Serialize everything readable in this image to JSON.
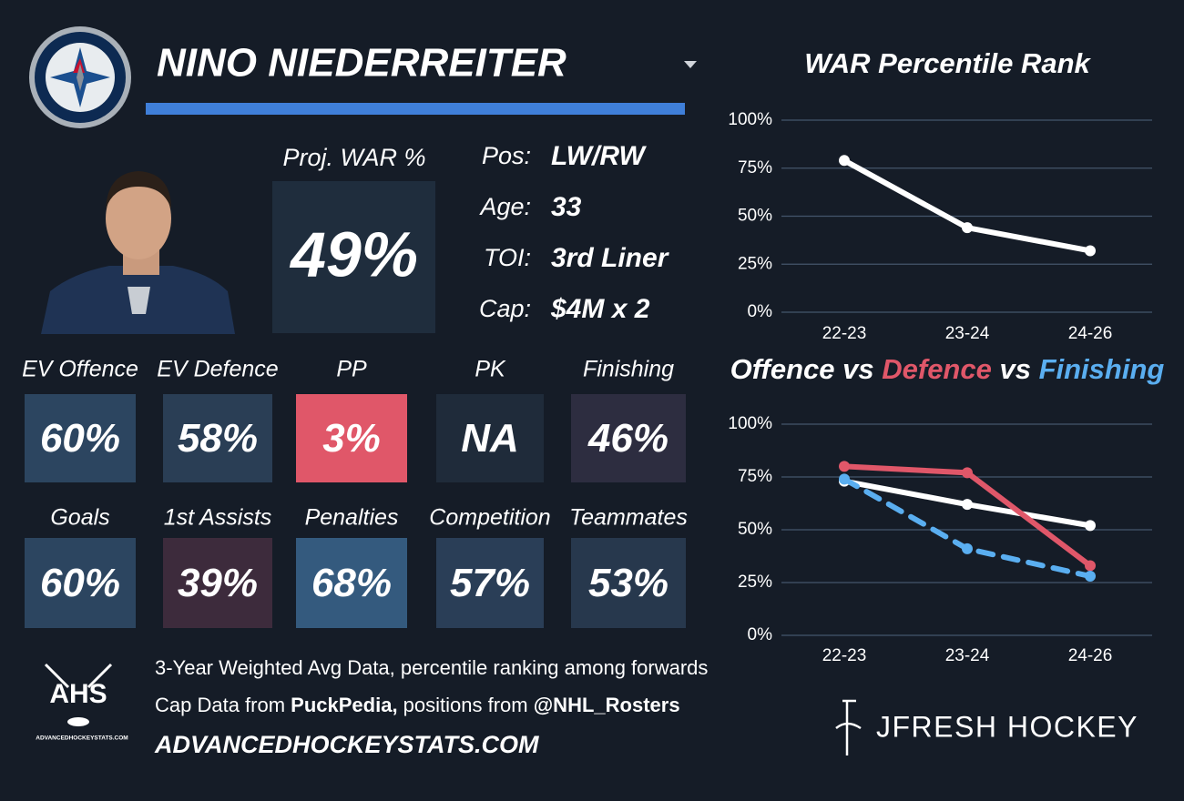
{
  "player": {
    "name": "NINO NIEDERREITER",
    "proj_label": "Proj. WAR %",
    "proj_value": "49%",
    "info": [
      {
        "label": "Pos:",
        "value": "LW/RW"
      },
      {
        "label": "Age:",
        "value": "33"
      },
      {
        "label": "TOI:",
        "value": "3rd Liner"
      },
      {
        "label": "Cap:",
        "value": "$4M x 2"
      }
    ]
  },
  "tiles": [
    {
      "label": "EV Offence",
      "value": "60%",
      "color": "#2c4560"
    },
    {
      "label": "EV Defence",
      "value": "58%",
      "color": "#2a3e55"
    },
    {
      "label": "PP",
      "value": "3%",
      "color": "#e05769"
    },
    {
      "label": "PK",
      "value": "NA",
      "color": "#1f2b3a"
    },
    {
      "label": "Finishing",
      "value": "46%",
      "color": "#2d2d40"
    },
    {
      "label": "Goals",
      "value": "60%",
      "color": "#2c4560"
    },
    {
      "label": "1st Assists",
      "value": "39%",
      "color": "#3d2b3c"
    },
    {
      "label": "Penalties",
      "value": "68%",
      "color": "#345a7e"
    },
    {
      "label": "Competition",
      "value": "57%",
      "color": "#2a3e57"
    },
    {
      "label": "Teammates",
      "value": "53%",
      "color": "#27384d"
    }
  ],
  "footer": {
    "line1": "3-Year Weighted Avg Data, percentile ranking among forwards",
    "line2": [
      "Cap Data from ",
      "PuckPedia,",
      " positions from ",
      "@NHL_Rosters"
    ],
    "website": "ADVANCEDHOCKEYSTATS.COM",
    "ahs": "AHS",
    "ahs_small": "ADVANCEDHOCKEYSTATS.COM",
    "brand": "JFRESH HOCKEY"
  },
  "chart_data": [
    {
      "type": "line",
      "title": "WAR Percentile Rank",
      "categories": [
        "22-23",
        "23-24",
        "24-26"
      ],
      "values": [
        79,
        44,
        32
      ],
      "color": "#ffffff",
      "ylim": [
        0,
        100
      ],
      "yticks": [
        {
          "value": 0,
          "label": "0%"
        },
        {
          "value": 25,
          "label": "25%"
        },
        {
          "value": 50,
          "label": "50%"
        },
        {
          "value": 75,
          "label": "75%"
        },
        {
          "value": 100,
          "label": "100%"
        }
      ],
      "grid": true
    },
    {
      "type": "line",
      "title_separator": "vs",
      "categories": [
        "22-23",
        "23-24",
        "24-26"
      ],
      "series": [
        {
          "name": "Offence",
          "color": "#ffffff",
          "values": [
            73,
            62,
            52
          ]
        },
        {
          "name": "Defence",
          "color": "#e05769",
          "values": [
            80,
            77,
            33
          ]
        },
        {
          "name": "Finishing",
          "color": "#5aaef0",
          "values": [
            74,
            41,
            28
          ],
          "dashed": true
        }
      ],
      "ylim": [
        0,
        100
      ],
      "yticks": [
        {
          "value": 0,
          "label": "0%"
        },
        {
          "value": 25,
          "label": "25%"
        },
        {
          "value": 50,
          "label": "50%"
        },
        {
          "value": 75,
          "label": "75%"
        },
        {
          "value": 100,
          "label": "100%"
        }
      ],
      "grid": true
    }
  ]
}
